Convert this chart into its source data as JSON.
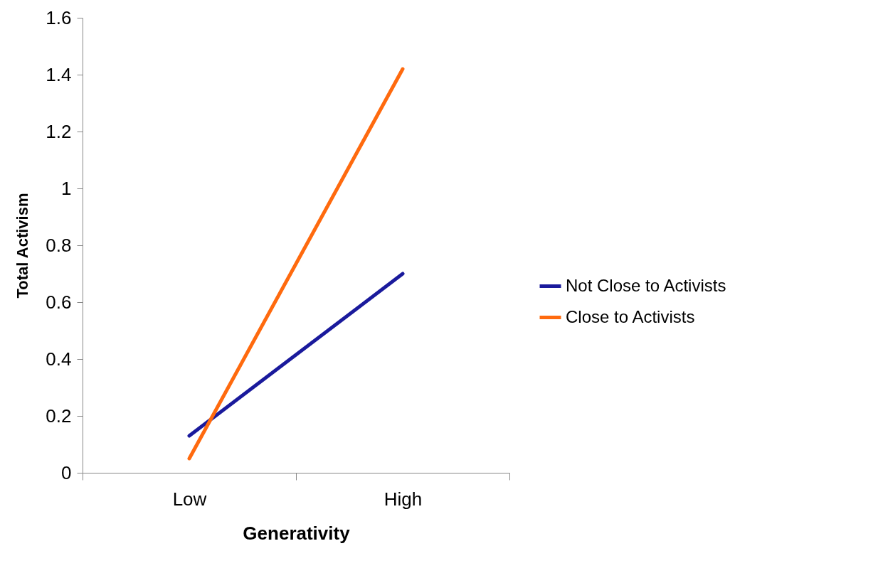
{
  "chart_data": {
    "type": "line",
    "xlabel": "Generativity",
    "ylabel": "Total Activism",
    "categories": [
      "Low",
      "High"
    ],
    "series": [
      {
        "name": "Not Close to Activists",
        "color": "#1a1a9c",
        "values": [
          0.13,
          0.7
        ]
      },
      {
        "name": "Close to Activists",
        "color": "#ff6a0e",
        "values": [
          0.05,
          1.42
        ]
      }
    ],
    "ylim": [
      0,
      1.6
    ],
    "yticks": [
      0,
      0.2,
      0.4,
      0.6,
      0.8,
      1,
      1.2,
      1.4,
      1.6
    ],
    "grid": false,
    "legend": "right",
    "marker": "none",
    "line_style": "solid"
  }
}
